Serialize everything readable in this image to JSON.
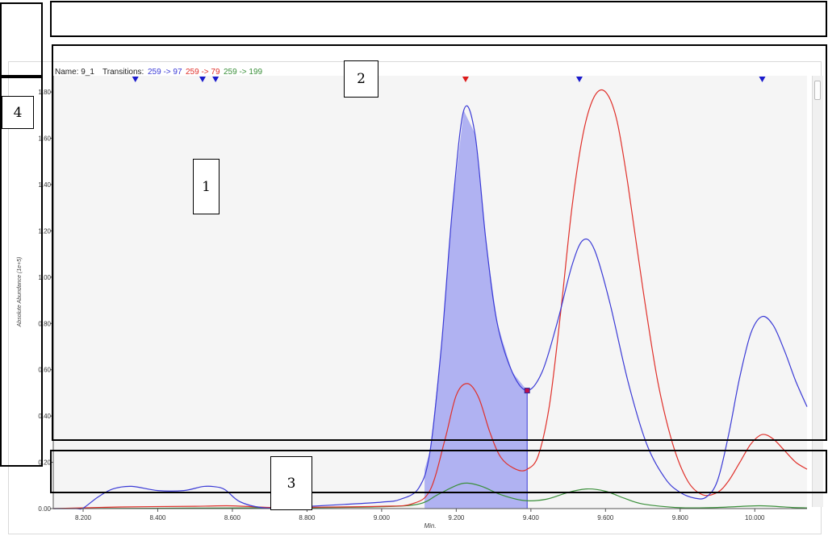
{
  "chart_data": {
    "type": "line",
    "name_label": "Name:",
    "name_value": "9_1",
    "transitions_label": "Transitions:",
    "series": [
      {
        "name": "259 -> 97",
        "color": "#3a3ad6",
        "x": [
          8.12,
          8.18,
          8.2,
          8.24,
          8.28,
          8.33,
          8.4,
          8.47,
          8.52,
          8.55,
          8.58,
          8.62,
          8.68,
          8.74,
          8.8,
          8.9,
          9.0,
          9.05,
          9.1,
          9.13,
          9.16,
          9.19,
          9.22,
          9.25,
          9.28,
          9.31,
          9.35,
          9.39,
          9.43,
          9.47,
          9.51,
          9.54,
          9.57,
          9.61,
          9.66,
          9.71,
          9.76,
          9.8,
          9.84,
          9.87,
          9.9,
          9.93,
          9.96,
          9.99,
          10.02,
          10.05,
          10.08,
          10.11,
          10.14
        ],
        "y": [
          0.0,
          0.0,
          0.002,
          0.05,
          0.085,
          0.096,
          0.078,
          0.078,
          0.095,
          0.095,
          0.082,
          0.03,
          0.004,
          0.004,
          0.009,
          0.018,
          0.028,
          0.04,
          0.09,
          0.25,
          0.7,
          1.3,
          1.72,
          1.62,
          1.15,
          0.8,
          0.59,
          0.51,
          0.59,
          0.8,
          1.05,
          1.16,
          1.12,
          0.9,
          0.55,
          0.28,
          0.13,
          0.07,
          0.045,
          0.05,
          0.12,
          0.32,
          0.57,
          0.76,
          0.83,
          0.79,
          0.68,
          0.55,
          0.44
        ]
      },
      {
        "name": "259 -> 79",
        "color": "#e0302a",
        "x": [
          8.12,
          8.3,
          8.5,
          8.6,
          8.7,
          8.8,
          9.0,
          9.08,
          9.13,
          9.17,
          9.2,
          9.23,
          9.26,
          9.29,
          9.32,
          9.36,
          9.39,
          9.42,
          9.45,
          9.48,
          9.51,
          9.54,
          9.57,
          9.6,
          9.63,
          9.66,
          9.7,
          9.74,
          9.78,
          9.82,
          9.86,
          9.9,
          9.93,
          9.96,
          9.99,
          10.02,
          10.05,
          10.08,
          10.11,
          10.14
        ],
        "y": [
          0.0,
          0.007,
          0.01,
          0.012,
          0.005,
          0.006,
          0.01,
          0.02,
          0.08,
          0.3,
          0.49,
          0.54,
          0.48,
          0.33,
          0.22,
          0.17,
          0.17,
          0.23,
          0.45,
          0.85,
          1.3,
          1.62,
          1.78,
          1.8,
          1.68,
          1.4,
          0.95,
          0.55,
          0.28,
          0.12,
          0.06,
          0.07,
          0.12,
          0.2,
          0.28,
          0.32,
          0.3,
          0.25,
          0.2,
          0.17
        ]
      },
      {
        "name": "259 -> 199",
        "color": "#3a8f3a",
        "x": [
          8.12,
          8.5,
          8.8,
          9.0,
          9.1,
          9.15,
          9.2,
          9.23,
          9.27,
          9.32,
          9.38,
          9.44,
          9.5,
          9.55,
          9.6,
          9.65,
          9.7,
          9.8,
          9.9,
          10.0,
          10.05,
          10.1,
          10.14
        ],
        "y": [
          0.0,
          0.002,
          0.004,
          0.008,
          0.02,
          0.06,
          0.1,
          0.11,
          0.095,
          0.06,
          0.035,
          0.04,
          0.07,
          0.085,
          0.075,
          0.045,
          0.02,
          0.004,
          0.005,
          0.012,
          0.01,
          0.005,
          0.003
        ]
      }
    ],
    "integrated_area": {
      "series": "259 -> 97",
      "x_start": 9.115,
      "x_end": 9.39,
      "fill": "#a8abf2"
    },
    "peak_markers": [
      {
        "x": 8.34,
        "color": "#1a1acc"
      },
      {
        "x": 8.52,
        "color": "#1a1acc"
      },
      {
        "x": 8.555,
        "color": "#1a1acc"
      },
      {
        "x": 9.225,
        "color": "#dd1a1a"
      },
      {
        "x": 9.53,
        "color": "#1a1acc"
      },
      {
        "x": 10.02,
        "color": "#1a1acc"
      }
    ],
    "boundary_marker": {
      "x": 9.39,
      "y": 0.51
    },
    "x_ticks": [
      8.2,
      8.4,
      8.6,
      8.8,
      9.0,
      9.2,
      9.4,
      9.6,
      9.8,
      10.0
    ],
    "x_tick_labels": [
      "8.200",
      "8.400",
      "8.600",
      "8.800",
      "9.000",
      "9.200",
      "9.400",
      "9.600",
      "9.800",
      "10.000"
    ],
    "y_ticks": [
      0,
      0.2,
      0.4,
      0.6,
      0.8,
      1.0,
      1.2,
      1.4,
      1.6,
      1.8
    ],
    "y_tick_labels": [
      "0.00",
      "0.20",
      "0.40",
      "0.60",
      "0.80",
      "1.00",
      "1.20",
      "1.40",
      "1.60",
      "1.80"
    ],
    "xlabel": "Min.",
    "ylabel": "Absolute Abundance (1e+5)",
    "xlim": [
      8.12,
      10.14
    ],
    "ylim": [
      0,
      1.87
    ],
    "grid": false,
    "plot_background": "#f5f5f5"
  },
  "annotations": [
    {
      "label": "1"
    },
    {
      "label": "2"
    },
    {
      "label": "3"
    },
    {
      "label": "4"
    }
  ]
}
